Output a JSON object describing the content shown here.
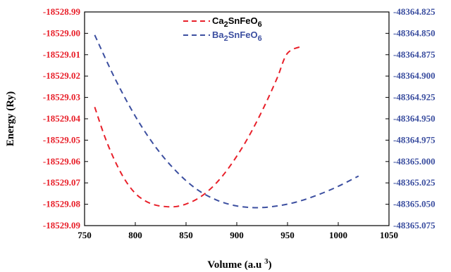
{
  "chart_data": {
    "type": "line",
    "xlabel_base": "Volume (a.u ",
    "xlabel_sup": "3",
    "xlabel_close": ")",
    "ylabel": "Energy (Ry)",
    "xlim": [
      750,
      1050
    ],
    "x_ticks": [
      "750",
      "800",
      "850",
      "900",
      "950",
      "1000",
      "1050"
    ],
    "y_left_lim": [
      -18529.09,
      -18528.99
    ],
    "y_left_ticks": [
      "-18528.99",
      "-18529.00",
      "-18529.01",
      "-18529.02",
      "-18529.03",
      "-18529.04",
      "-18529.05",
      "-18529.06",
      "-18529.07",
      "-18529.08",
      "-18529.09"
    ],
    "y_right_lim": [
      -48365.075,
      -48364.825
    ],
    "y_right_ticks": [
      "-48364.825",
      "-48364.850",
      "-48364.875",
      "-48364.900",
      "-48364.925",
      "-48364.950",
      "-48364.975",
      "-48365.000",
      "-48365.025",
      "-48365.050",
      "-48365.075"
    ],
    "legend_placement": "top-center",
    "grid": false,
    "series": [
      {
        "name_parts": [
          "Ca",
          "2",
          "SnFeO",
          "6"
        ],
        "color": "#e8202a",
        "axis": "left",
        "x": [
          760,
          770,
          780,
          790,
          800,
          810,
          820,
          830,
          840,
          850,
          860,
          870,
          880,
          890,
          900,
          910,
          920,
          930,
          940,
          950,
          965
        ],
        "y": [
          -18529.0345,
          -18529.0485,
          -18529.0598,
          -18529.0687,
          -18529.0749,
          -18529.0785,
          -18529.0804,
          -18529.0811,
          -18529.0811,
          -18529.0799,
          -18529.0778,
          -18529.0745,
          -18529.07,
          -18529.0643,
          -18529.0575,
          -18529.0498,
          -18529.041,
          -18529.0313,
          -18529.0207,
          -18529.0093,
          -18529.006
        ]
      },
      {
        "name_parts": [
          "Ba",
          "2",
          "SnFeO",
          "6"
        ],
        "color": "#3c4fa0",
        "axis": "right",
        "x": [
          760,
          780,
          800,
          820,
          840,
          860,
          880,
          900,
          920,
          940,
          960,
          980,
          1000,
          1020
        ],
        "y": [
          -48364.852,
          -48364.903,
          -48364.947,
          -48364.983,
          -48365.011,
          -48365.032,
          -48365.045,
          -48365.052,
          -48365.054,
          -48365.052,
          -48365.047,
          -48365.039,
          -48365.029,
          -48365.017
        ]
      }
    ]
  }
}
